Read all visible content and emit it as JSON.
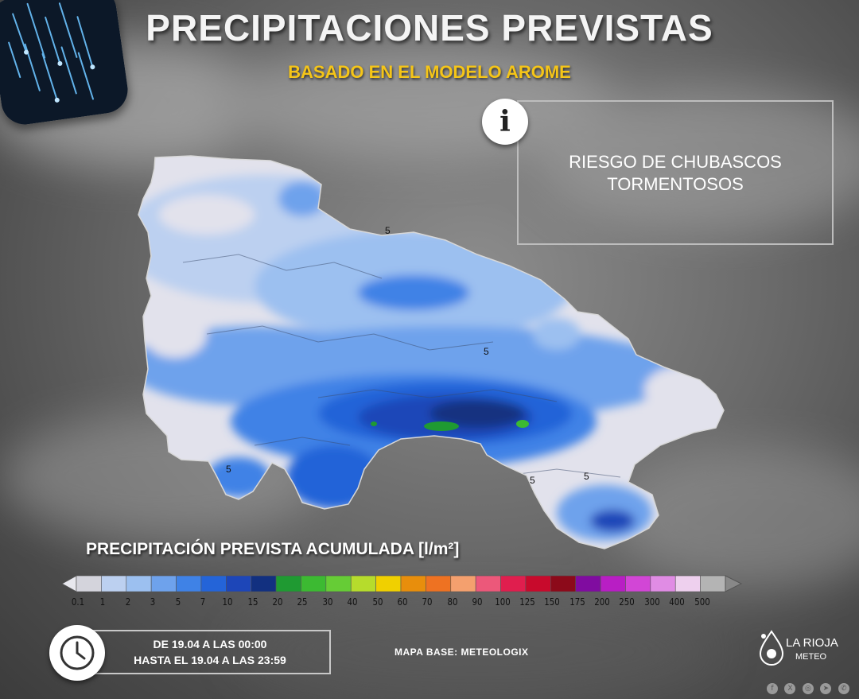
{
  "header": {
    "title": "PRECIPITACIONES PREVISTAS",
    "subtitle": "BASADO EN EL MODELO AROME"
  },
  "info_panel": {
    "icon": "info-icon",
    "line1": "RIESGO DE CHUBASCOS",
    "line2": "TORMENTOSOS"
  },
  "map": {
    "region": "La Rioja",
    "contour_labels": [
      "5",
      "5",
      "5",
      "5",
      "5"
    ]
  },
  "legend": {
    "title": "PRECIPITACIÓN PREVISTA ACUMULADA [l/m²]",
    "labels": [
      "0.1",
      "1",
      "2",
      "3",
      "5",
      "7",
      "10",
      "15",
      "20",
      "25",
      "30",
      "40",
      "50",
      "60",
      "70",
      "80",
      "90",
      "100",
      "125",
      "150",
      "175",
      "200",
      "250",
      "300",
      "400",
      "500"
    ],
    "colors": [
      "#d4d4dc",
      "#bcd0f0",
      "#9cc0f0",
      "#6ea2ec",
      "#3f82e6",
      "#2464d8",
      "#1d46b8",
      "#123080",
      "#1f9a32",
      "#3cba32",
      "#66cc36",
      "#b6dc2c",
      "#f0d000",
      "#e88e0c",
      "#ee7222",
      "#f4a06e",
      "#ec587a",
      "#e01e4e",
      "#c80a2c",
      "#8c0a1a",
      "#800ca0",
      "#b81ec4",
      "#d246d6",
      "#e08ce4",
      "#eed0ee",
      "#b4b4b4"
    ],
    "under_color": "#e8e8ee",
    "over_color": "#888888"
  },
  "footer": {
    "clock_icon": "clock-icon",
    "date_from": "DE 19.04 A LAS 00:00",
    "date_to": "HASTA EL 19.04 A LAS 23:59",
    "map_base": "MAPA BASE: METEOLOGIX",
    "logo_name": "LA RIOJA",
    "logo_sub": "METEO",
    "socials": [
      "facebook-icon",
      "x-icon",
      "instagram-icon",
      "telegram-icon",
      "whatsapp-icon"
    ]
  }
}
